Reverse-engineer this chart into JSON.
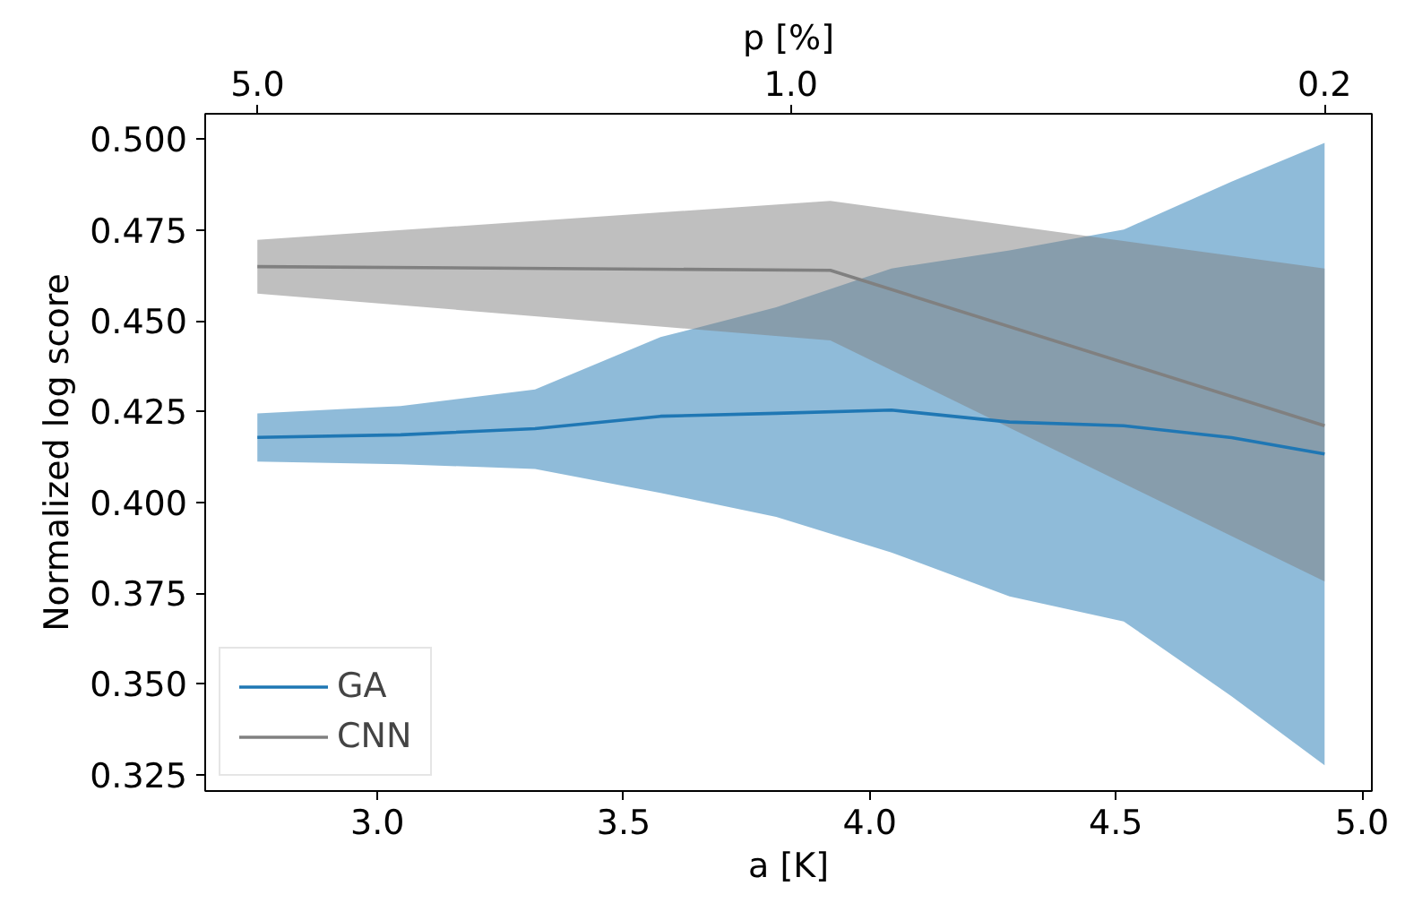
{
  "chart_data": {
    "type": "line",
    "xlabel": "a [K]",
    "ylabel": "Normalized log score",
    "x2label": "p [%]",
    "xlim": [
      2.65,
      5.02
    ],
    "ylim": [
      0.3205,
      0.507
    ],
    "x2lim": [
      5.855,
      0.1734
    ],
    "log": "x2",
    "xticks": [
      {
        "value": 3,
        "label": "3.0"
      },
      3.5,
      {
        "value": 4,
        "label": "4.0"
      },
      4.5,
      {
        "value": 5,
        "label": "5.0"
      }
    ],
    "yticks": [
      0.325,
      {
        "value": 0.35,
        "label": "0.350"
      },
      0.375,
      {
        "value": 0.4,
        "label": "0.400"
      },
      0.425,
      {
        "value": 0.45,
        "label": "0.450"
      },
      0.475,
      {
        "value": 0.5,
        "label": "0.500"
      }
    ],
    "x2ticks": [
      {
        "value": 5,
        "label": "5.0"
      },
      {
        "value": 1,
        "label": "1.0"
      },
      {
        "value": 0.2,
        "label": "0.2"
      }
    ],
    "grid": false,
    "legend": "bottom left",
    "series": [
      {
        "name": "GA",
        "color": "#1f77b4",
        "x": [
          2.756,
          3.047,
          3.32,
          3.575,
          3.81,
          4.044,
          4.284,
          4.516,
          4.735,
          4.924
        ],
        "values": [
          0.4179,
          0.4186,
          0.4203,
          0.4237,
          0.4245,
          0.4254,
          0.4221,
          0.4211,
          0.4178,
          0.4133
        ],
        "lower": [
          0.4112,
          0.4105,
          0.4092,
          0.4026,
          0.396,
          0.3862,
          0.3741,
          0.3672,
          0.3466,
          0.3276
        ],
        "upper": [
          0.4245,
          0.4265,
          0.4311,
          0.4455,
          0.4537,
          0.4644,
          0.4694,
          0.4751,
          0.4883,
          0.499
        ]
      },
      {
        "name": "CNN",
        "color": "#808080",
        "x": [
          2.756,
          3.92,
          4.924
        ],
        "values": [
          0.4649,
          0.4639,
          0.4211
        ],
        "lower": [
          0.4575,
          0.4446,
          0.3782
        ],
        "upper": [
          0.4723,
          0.483,
          0.4644
        ]
      }
    ]
  }
}
